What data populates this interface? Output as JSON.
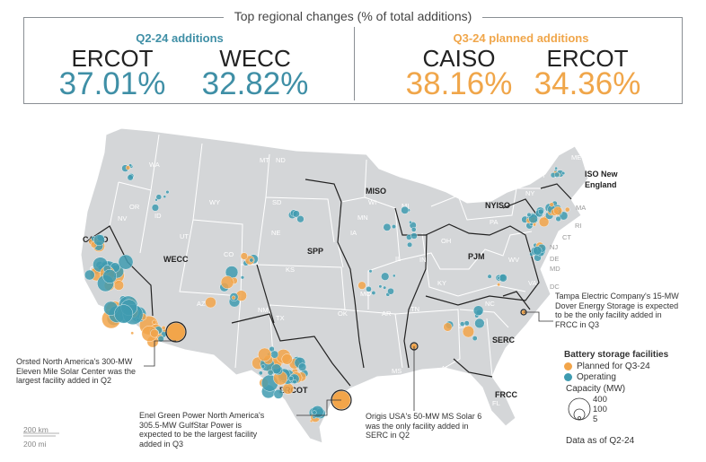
{
  "header": {
    "title": "Top regional changes (% of total additions)",
    "q2": {
      "label": "Q2-24 additions",
      "regions": [
        {
          "name": "ERCOT",
          "value": "37.01%"
        },
        {
          "name": "WECC",
          "value": "32.82%"
        }
      ]
    },
    "q3": {
      "label": "Q3-24 planned additions",
      "regions": [
        {
          "name": "CAISO",
          "value": "38.16%"
        },
        {
          "name": "ERCOT",
          "value": "34.36%"
        }
      ]
    }
  },
  "map": {
    "iso_labels": {
      "caiso": "CAISO",
      "wecc": "WECC",
      "spp": "SPP",
      "miso": "MISO",
      "ercot": "ERCOT",
      "pjm": "PJM",
      "nyiso": "NYISO",
      "iso_ne_1": "ISO New",
      "iso_ne_2": "England",
      "serc": "SERC",
      "frcc": "FRCC"
    },
    "states": {
      "wa": "WA",
      "mt": "MT",
      "nd": "ND",
      "or": "OR",
      "id": "ID",
      "wy": "WY",
      "sd": "SD",
      "mn": "MN",
      "wi": "WI",
      "mi": "MI",
      "nv": "NV",
      "ut": "UT",
      "co": "CO",
      "ne": "NE",
      "ks": "KS",
      "ia": "IA",
      "il": "IL",
      "in": "IN",
      "oh": "OH",
      "pa": "PA",
      "ny": "NY",
      "vt": "VT",
      "nh": "NH",
      "me": "ME",
      "ma": "MA",
      "ri": "RI",
      "ct": "CT",
      "nj": "NJ",
      "de": "DE",
      "md": "MD",
      "dc": "DC",
      "va": "VA",
      "wv": "WV",
      "nc": "NC",
      "sc": "SC",
      "ga": "GA",
      "fl": "FL",
      "al": "AL",
      "ms": "MS",
      "la": "LA",
      "ar": "AR",
      "tn": "TN",
      "ky": "KY",
      "mo": "MO",
      "ok": "OK",
      "tx": "TX",
      "nm": "NM",
      "az": "AZ",
      "ca": "CA"
    }
  },
  "annotations": {
    "orsted": [
      "Orsted North America's 300-MW",
      "Eleven Mile Solar Center was the",
      "largest facility added in Q2"
    ],
    "enel": [
      "Enel Green Power North America's",
      "305.5-MW GulfStar Power is",
      "expected to be the largest facility",
      "added in Q3"
    ],
    "origis": [
      "Origis USA's 50-MW MS Solar 6",
      "was the only facility added in",
      "SERC in Q2"
    ],
    "tampa": [
      "Tampa Electric Company's 15-MW",
      "Dover Energy Storage is expected",
      "to be the only facility added in",
      "FRCC in Q3"
    ]
  },
  "legend": {
    "title": "Battery storage facilities",
    "planned": "Planned for Q3-24",
    "operating": "Operating",
    "capacity_title": "Capacity (MW)",
    "capacity_values": [
      "400",
      "100",
      "5"
    ],
    "data_as_of": "Data as of Q2-24"
  },
  "scale": {
    "km": "200 km",
    "mi": "200 mi"
  },
  "colors": {
    "planned": "#f2a54a",
    "operating": "#3f9bb0",
    "land": "#d4d6d8",
    "border": "#ffffff",
    "iso_border": "#222222",
    "teal_text": "#3f8fa6",
    "orange_text": "#f0a64a"
  }
}
